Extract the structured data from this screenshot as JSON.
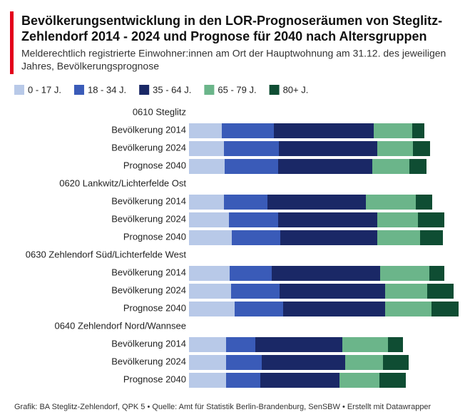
{
  "chart_data": {
    "type": "stacked-barh",
    "title": [
      "Bevölkerungsentwicklung in den LOR-Prognoseräumen von Steglitz-",
      "Zehlendorf 2014 - 2024 und Prognose für 2040 nach Altersgruppen"
    ],
    "subtitle": [
      "Melderechtlich registrierte Einwohner:innen am Ort der Hauptwohnung am 31.12. des jeweiligen",
      "Jahres, Bevölkerungsprognose"
    ],
    "groups": [
      {
        "name": "0610 Steglitz",
        "categories": [
          "Bevölkerung 2014",
          "Bevölkerung 2024",
          "Prognose 2040"
        ]
      },
      {
        "name": "0620 Lankwitz/Lichterfelde Ost",
        "categories": [
          "Bevölkerung 2014",
          "Bevölkerung 2024",
          "Prognose 2040"
        ]
      },
      {
        "name": "0630 Zehlendorf Süd/Lichterfelde West",
        "categories": [
          "Bevölkerung 2014",
          "Bevölkerung 2024",
          "Prognose 2040"
        ]
      },
      {
        "name": "0640 Zehlendorf Nord/Wannsee",
        "categories": [
          "Bevölkerung 2014",
          "Bevölkerung 2024",
          "Prognose 2040"
        ]
      }
    ],
    "series": [
      {
        "name": "0 - 17 J.",
        "color": "#b8c9e8",
        "values": [
          [
            46,
            49,
            50
          ],
          [
            49,
            56,
            60
          ],
          [
            57,
            59,
            64
          ],
          [
            52,
            52,
            52
          ]
        ]
      },
      {
        "name": "18 - 34 J.",
        "color": "#3a5bb8",
        "values": [
          [
            73,
            77,
            75
          ],
          [
            61,
            69,
            68
          ],
          [
            59,
            68,
            68
          ],
          [
            41,
            50,
            48
          ]
        ]
      },
      {
        "name": "35 - 64 J.",
        "color": "#1a2866",
        "values": [
          [
            140,
            138,
            132
          ],
          [
            138,
            139,
            136
          ],
          [
            152,
            148,
            143
          ],
          [
            122,
            117,
            111
          ]
        ]
      },
      {
        "name": "65 - 79 J.",
        "color": "#6bb58a",
        "values": [
          [
            54,
            50,
            52
          ],
          [
            70,
            57,
            60
          ],
          [
            69,
            59,
            65
          ],
          [
            64,
            53,
            56
          ]
        ]
      },
      {
        "name": "80+ J.",
        "color": "#0f4d33",
        "values": [
          [
            17,
            24,
            24
          ],
          [
            23,
            37,
            32
          ],
          [
            21,
            37,
            38
          ],
          [
            21,
            36,
            37
          ]
        ]
      }
    ],
    "xlim": [
      0,
      380
    ],
    "footer": "Grafik: BA Steglitz-Zehlendorf, QPK 5 • Quelle: Amt für Statistik Berlin-Brandenburg, SenSBW • Erstellt mit Datawrapper"
  }
}
